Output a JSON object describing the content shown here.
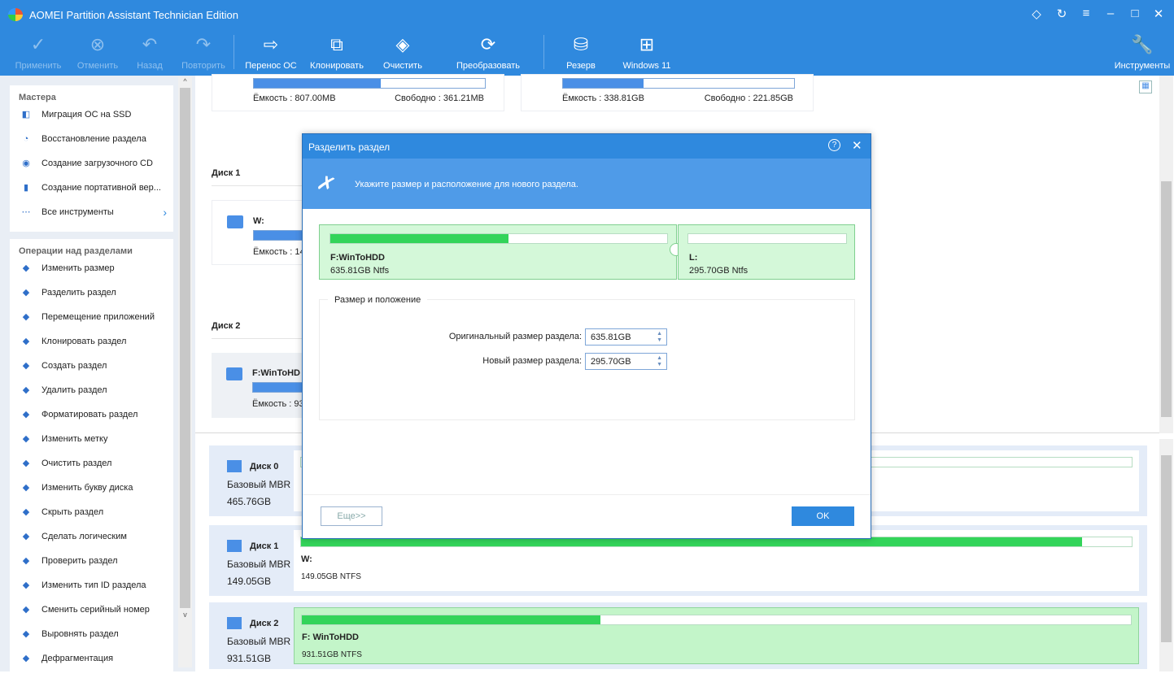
{
  "app": {
    "title": "AOMEI Partition Assistant Technician Edition",
    "accent": "#2f89de"
  },
  "toolbar": {
    "items": [
      {
        "label": "Применить",
        "icon": "check-icon",
        "enabled": false
      },
      {
        "label": "Отменить",
        "icon": "cancel-circle-icon",
        "enabled": false
      },
      {
        "label": "Назад",
        "icon": "undo-icon",
        "enabled": false
      },
      {
        "label": "Повторить",
        "icon": "redo-icon",
        "enabled": false
      },
      {
        "label": "Перенос ОС",
        "icon": "migrate-os-icon",
        "enabled": true
      },
      {
        "label": "Клонировать",
        "icon": "clone-icon",
        "enabled": true
      },
      {
        "label": "Очистить",
        "icon": "wipe-icon",
        "enabled": true
      },
      {
        "label": "Преобразовать",
        "icon": "convert-icon",
        "enabled": true
      },
      {
        "label": "Резерв",
        "icon": "backup-icon",
        "enabled": true
      },
      {
        "label": "Windows 11",
        "icon": "windows-icon",
        "enabled": true
      },
      {
        "label": "Инструменты",
        "icon": "tools-icon",
        "enabled": true
      }
    ]
  },
  "sidebar": {
    "wizards_title": "Мастера",
    "wizards": [
      "Миграция ОС на SSD",
      "Восстановление раздела",
      "Создание загрузочного CD",
      "Создание портативной вер...",
      "Все инструменты"
    ],
    "ops_title": "Операции над разделами",
    "ops": [
      "Изменить размер",
      "Разделить раздел",
      "Перемещение приложений",
      "Клонировать раздел",
      "Создать раздел",
      "Удалить раздел",
      "Форматировать раздел",
      "Изменить метку",
      "Очистить раздел",
      "Изменить букву диска",
      "Скрыть раздел",
      "Сделать логическим",
      "Проверить раздел",
      "Изменить тип ID раздела",
      "Сменить серийный номер",
      "Выровнять раздел",
      "Дефрагментация"
    ]
  },
  "main": {
    "top_cards": [
      {
        "capacity": "Ёмкость : 807.00MB",
        "free": "Свободно : 361.21MB",
        "used": 0.55
      },
      {
        "capacity": "Ёмкость : 338.81GB",
        "free": "Свободно : 221.85GB",
        "used": 0.35
      }
    ],
    "disk1": {
      "title": "Диск 1",
      "part": "W:",
      "capacity": "Ёмкость : 14"
    },
    "disk2": {
      "title": "Диск 2",
      "part": "F:WinToHD",
      "capacity": "Ёмкость : 93"
    },
    "disk_map": [
      {
        "name": "Диск 0",
        "type": "Базовый MBR",
        "size": "465.76GB",
        "part": "",
        "fs": "",
        "used": 0
      },
      {
        "name": "Диск 1",
        "type": "Базовый MBR",
        "size": "149.05GB",
        "part": "W:",
        "fs": "149.05GB NTFS",
        "used": 0.94
      },
      {
        "name": "Диск 2",
        "type": "Базовый MBR",
        "size": "931.51GB",
        "part": "F: WinToHDD",
        "fs": "931.51GB NTFS",
        "used": 0.36
      }
    ]
  },
  "dialog": {
    "title": "Разделить раздел",
    "instruction": "Укажите размер и расположение для нового раздела.",
    "left_part": {
      "name": "F:WinToHDD",
      "info": "635.81GB Ntfs",
      "used": 0.53
    },
    "right_part": {
      "name": "L:",
      "info": "295.70GB Ntfs",
      "used": 0
    },
    "group_title": "Размер и положение",
    "orig_label": "Оригинальный размер раздела:",
    "orig_value": "635.81GB",
    "new_label": "Новый размер раздела:",
    "new_value": "295.70GB",
    "more_label": "Еще>>",
    "ok_label": "OK"
  }
}
